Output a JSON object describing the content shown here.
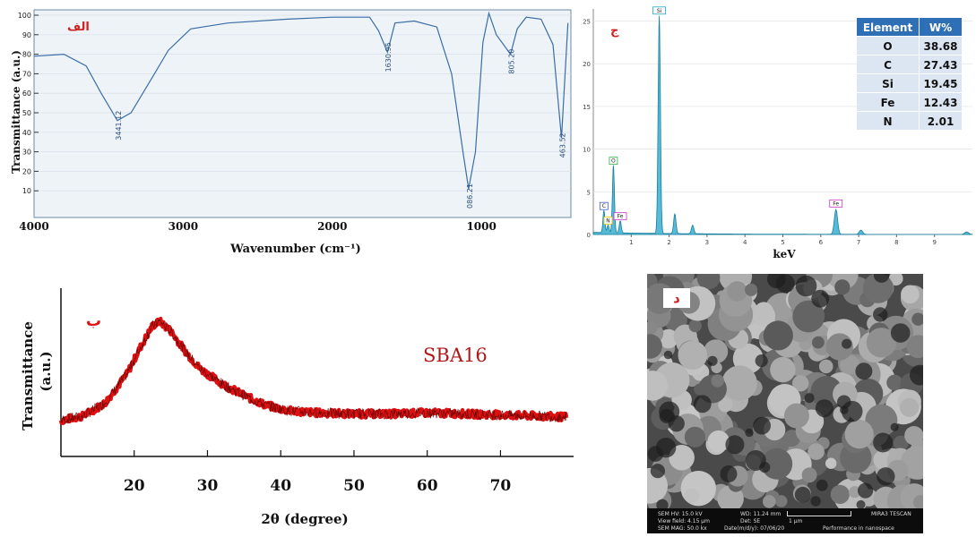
{
  "chart_data": [
    {
      "type": "line",
      "panel_label": "الف",
      "xlabel": "Wavenumber (cm⁻¹)",
      "ylabel": "Transmittance (a.u.)",
      "x_ticks": [
        4000,
        3000,
        2000,
        1000
      ],
      "y_ticks": [
        10,
        20,
        30,
        40,
        50,
        60,
        70,
        80,
        90,
        100
      ],
      "xlim": [
        4000,
        400
      ],
      "ylim": [
        0,
        100
      ],
      "grid": true,
      "series": [
        {
          "color": "#3a6ea5",
          "points": [
            [
              4000,
              79
            ],
            [
              3800,
              80
            ],
            [
              3650,
              74
            ],
            [
              3550,
              60
            ],
            [
              3441,
              46
            ],
            [
              3350,
              50
            ],
            [
              3200,
              69
            ],
            [
              3100,
              82
            ],
            [
              2950,
              93
            ],
            [
              2700,
              96
            ],
            [
              2300,
              98
            ],
            [
              2000,
              99
            ],
            [
              1750,
              99
            ],
            [
              1690,
              92
            ],
            [
              1630,
              81
            ],
            [
              1580,
              96
            ],
            [
              1450,
              97
            ],
            [
              1300,
              94
            ],
            [
              1200,
              70
            ],
            [
              1120,
              28
            ],
            [
              1086,
              11
            ],
            [
              1040,
              30
            ],
            [
              990,
              86
            ],
            [
              950,
              101
            ],
            [
              900,
              90
            ],
            [
              805,
              80
            ],
            [
              760,
              93
            ],
            [
              700,
              99
            ],
            [
              600,
              98
            ],
            [
              520,
              85
            ],
            [
              463,
              37
            ],
            [
              420,
              96
            ]
          ]
        }
      ],
      "annotations": [
        "3441.12",
        "1630.95",
        "086.21",
        "805.20",
        "463.52"
      ]
    },
    {
      "type": "bar",
      "panel_label": "ج",
      "xlabel": "keV",
      "x_ticks": [
        "1",
        "2",
        "3",
        "4",
        "5",
        "6",
        "7",
        "8",
        "9"
      ],
      "y_ticks": [
        "0",
        "5",
        "10",
        "15",
        "20",
        "25"
      ],
      "xlim": [
        0,
        10
      ],
      "ylim": [
        0,
        26
      ],
      "peak_color": "#1fa3c9",
      "peaks": [
        {
          "x": 0.28,
          "y": 2.6,
          "label": "C"
        },
        {
          "x": 0.39,
          "y": 0.9,
          "label": "N"
        },
        {
          "x": 0.53,
          "y": 7.9,
          "label": "O"
        },
        {
          "x": 0.71,
          "y": 1.4,
          "label": "Fe"
        },
        {
          "x": 1.74,
          "y": 25.5,
          "label": "Si"
        },
        {
          "x": 2.15,
          "y": 2.3,
          "label": ""
        },
        {
          "x": 2.62,
          "y": 1.0,
          "label": ""
        },
        {
          "x": 6.4,
          "y": 2.9,
          "label": "Fe"
        },
        {
          "x": 7.06,
          "y": 0.5,
          "label": ""
        },
        {
          "x": 9.85,
          "y": 0.3,
          "label": ""
        }
      ],
      "table": {
        "headers": [
          "Element",
          "W%"
        ],
        "rows": [
          [
            "O",
            "38.68"
          ],
          [
            "C",
            "27.43"
          ],
          [
            "Si",
            "19.45"
          ],
          [
            "Fe",
            "12.43"
          ],
          [
            "N",
            "2.01"
          ]
        ],
        "header_color": "#2f6fb5",
        "row_color": "#dce6f2"
      }
    },
    {
      "type": "line",
      "panel_label": "ب",
      "series_label": "SBA16",
      "xlabel": "2θ (degree)",
      "ylabel_line1": "Transmittance",
      "ylabel_line2": "(a.u.)",
      "x_ticks": [
        20,
        30,
        40,
        50,
        60,
        70
      ],
      "xlim": [
        10,
        79
      ],
      "color": "#dd1111",
      "series": [
        {
          "points": [
            [
              10,
              0.02
            ],
            [
              13,
              0.06
            ],
            [
              16,
              0.18
            ],
            [
              19,
              0.45
            ],
            [
              21,
              0.72
            ],
            [
              22.5,
              0.9
            ],
            [
              23.5,
              0.94
            ],
            [
              25,
              0.85
            ],
            [
              27,
              0.66
            ],
            [
              29,
              0.5
            ],
            [
              32,
              0.36
            ],
            [
              35,
              0.25
            ],
            [
              38,
              0.16
            ],
            [
              41,
              0.11
            ],
            [
              45,
              0.09
            ],
            [
              50,
              0.08
            ],
            [
              55,
              0.08
            ],
            [
              60,
              0.09
            ],
            [
              65,
              0.08
            ],
            [
              70,
              0.07
            ],
            [
              75,
              0.06
            ],
            [
              79,
              0.05
            ]
          ]
        }
      ]
    }
  ],
  "sem": {
    "panel_label": "د",
    "info": {
      "hv": "SEM HV: 15.0 kV",
      "wd": "WD: 11.24 mm",
      "vendor": "MIRA3 TESCAN",
      "view": "View field: 4.15 µm",
      "det": "Det: SE",
      "scale": "1 µm",
      "mag": "SEM MAG: 50.0 kx",
      "date": "Date(m/d/y): 07/06/20",
      "footer": "Performance in nanospace"
    }
  }
}
